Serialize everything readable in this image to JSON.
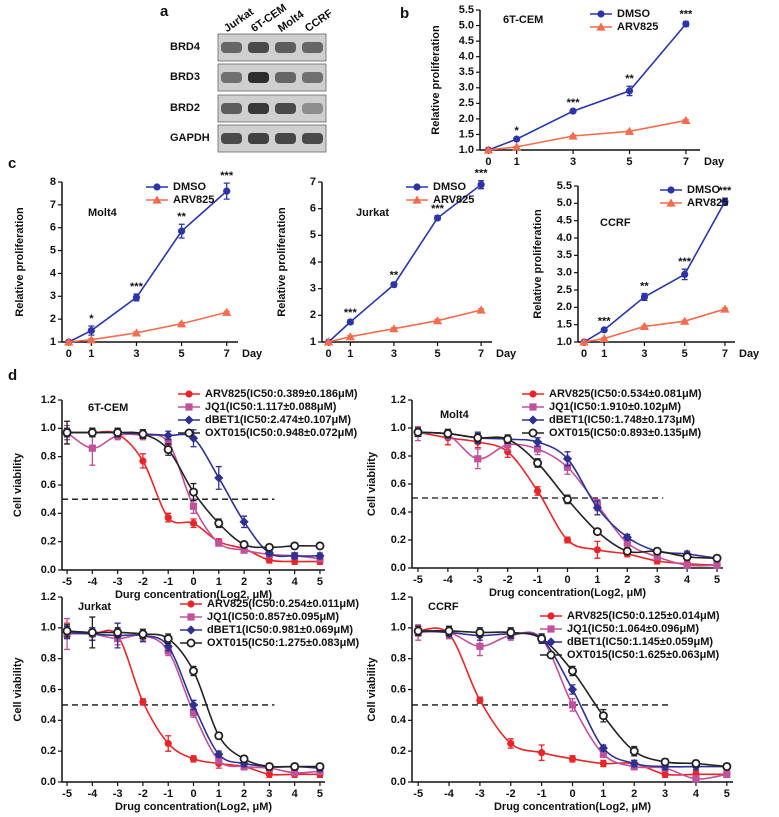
{
  "blot": {
    "panel": "a",
    "lanes": [
      "Jurkat",
      "6T-CEM",
      "Molt4",
      "CCRF"
    ],
    "rows": [
      "BRD4",
      "BRD3",
      "BRD2",
      "GAPDH"
    ]
  },
  "chart_data": [
    {
      "type": "line",
      "panel": "b",
      "title": "6T-CEM",
      "x_label": "Day",
      "y_label": "Relative proliferation",
      "x": [
        0,
        1,
        3,
        5,
        7
      ],
      "xlim": [
        -0.3,
        7.5
      ],
      "xticks": [
        0,
        1,
        3,
        5,
        7
      ],
      "ylim": [
        1,
        5.5
      ],
      "yticks": [
        {
          "value": 1,
          "label": "1.0"
        },
        1.5,
        {
          "value": 2,
          "label": "2.0"
        },
        2.5,
        {
          "value": 3,
          "label": "3.0"
        },
        3.5,
        {
          "value": 4,
          "label": "4.0"
        },
        4.5,
        {
          "value": 5,
          "label": "5.0"
        },
        5.5
      ],
      "legend": "upper right",
      "significance": [
        null,
        "*",
        "***",
        "**",
        "***"
      ],
      "series": [
        {
          "name": "DMSO",
          "color": "#2b35a8",
          "marker": "circle",
          "values": [
            1.0,
            1.35,
            2.25,
            2.9,
            5.05
          ],
          "errors": [
            0.02,
            0.04,
            0.04,
            0.15,
            0.08
          ]
        },
        {
          "name": "ARV825",
          "color": "#f26c4f",
          "marker": "triangle",
          "values": [
            1.0,
            1.1,
            1.45,
            1.6,
            1.95
          ],
          "errors": [
            0.02,
            0.02,
            0.03,
            0.03,
            0.03
          ]
        }
      ]
    },
    {
      "type": "line",
      "panel": "c",
      "title": "Molt4",
      "x_label": "Day",
      "y_label": "Relative proliferation",
      "x": [
        0,
        1,
        3,
        5,
        7
      ],
      "xlim": [
        -0.3,
        7.5
      ],
      "xticks": [
        0,
        1,
        3,
        5,
        7
      ],
      "ylim": [
        1,
        8
      ],
      "yticks": [
        1,
        2,
        3,
        4,
        5,
        6,
        7,
        8
      ],
      "legend": "upper right",
      "significance": [
        null,
        "*",
        "***",
        "**",
        "***"
      ],
      "series": [
        {
          "name": "DMSO",
          "color": "#2b35a8",
          "marker": "circle",
          "values": [
            1.0,
            1.5,
            2.95,
            5.85,
            7.6
          ],
          "errors": [
            0.05,
            0.2,
            0.15,
            0.3,
            0.35
          ]
        },
        {
          "name": "ARV825",
          "color": "#f26c4f",
          "marker": "triangle",
          "values": [
            1.0,
            1.1,
            1.4,
            1.8,
            2.3
          ],
          "errors": [
            0.03,
            0.04,
            0.05,
            0.05,
            0.05
          ]
        }
      ]
    },
    {
      "type": "line",
      "title": "Jurkat",
      "x_label": "Day",
      "y_label": "Relative proliferation",
      "x": [
        0,
        1,
        3,
        5,
        7
      ],
      "xlim": [
        -0.3,
        7.5
      ],
      "xticks": [
        0,
        1,
        3,
        5,
        7
      ],
      "ylim": [
        1,
        7
      ],
      "yticks": [
        1,
        2,
        3,
        4,
        5,
        6,
        7
      ],
      "legend": "upper right",
      "significance": [
        null,
        "***",
        "**",
        "***",
        "***"
      ],
      "series": [
        {
          "name": "DMSO",
          "color": "#2b35a8",
          "marker": "circle",
          "values": [
            1.0,
            1.75,
            3.15,
            5.65,
            6.9
          ],
          "errors": [
            0.03,
            0.08,
            0.08,
            0.08,
            0.15
          ]
        },
        {
          "name": "ARV825",
          "color": "#f26c4f",
          "marker": "triangle",
          "values": [
            1.0,
            1.2,
            1.5,
            1.8,
            2.2
          ],
          "errors": [
            0.03,
            0.04,
            0.04,
            0.05,
            0.05
          ]
        }
      ]
    },
    {
      "type": "line",
      "title": "CCRF",
      "x_label": "Day",
      "y_label": "Relative proliferation",
      "x": [
        0,
        1,
        3,
        5,
        7
      ],
      "xlim": [
        -0.3,
        7.5
      ],
      "xticks": [
        0,
        1,
        3,
        5,
        7
      ],
      "ylim": [
        1,
        5.5
      ],
      "yticks": [
        {
          "value": 1,
          "label": "1.0"
        },
        1.5,
        {
          "value": 2,
          "label": "2.0"
        },
        2.5,
        {
          "value": 3,
          "label": "3.0"
        },
        3.5,
        {
          "value": 4,
          "label": "4.0"
        },
        4.5,
        {
          "value": 5,
          "label": "5.0"
        },
        5.5
      ],
      "legend": "upper right",
      "significance": [
        null,
        "***",
        "**",
        "***",
        "***"
      ],
      "series": [
        {
          "name": "DMSO",
          "color": "#2b35a8",
          "marker": "circle",
          "values": [
            1.0,
            1.35,
            2.3,
            2.95,
            5.05
          ],
          "errors": [
            0.02,
            0.04,
            0.1,
            0.15,
            0.1
          ]
        },
        {
          "name": "ARV825",
          "color": "#f26c4f",
          "marker": "triangle",
          "values": [
            1.0,
            1.1,
            1.45,
            1.6,
            1.95
          ],
          "errors": [
            0.02,
            0.02,
            0.03,
            0.03,
            0.03
          ]
        }
      ]
    },
    {
      "type": "scatter",
      "panel": "d",
      "title": "6T-CEM",
      "x_label": "Durg concentration(Log2, μM)",
      "y_label": "Cell viability",
      "fit_line": true,
      "x": [
        -5,
        -4,
        -3,
        -2,
        -1,
        0,
        1,
        2,
        3,
        4,
        5
      ],
      "xlim": [
        -5.2,
        5.2
      ],
      "xticks": [
        -5,
        -4,
        -3,
        -2,
        -1,
        0,
        1,
        2,
        3,
        4,
        5
      ],
      "ylim": [
        0,
        1.2
      ],
      "yticks": [
        {
          "value": 0,
          "label": "0.0"
        },
        0.2,
        0.4,
        0.6,
        0.8,
        {
          "value": 1,
          "label": "1.0"
        },
        1.2
      ],
      "reference_line": 0.5,
      "legend": "upper right",
      "series": [
        {
          "name": "ARV825(IC50:0.389±0.186μM)",
          "color": "#e8262a",
          "marker": "circle",
          "values": [
            0.97,
            0.97,
            0.96,
            0.77,
            0.37,
            0.33,
            0.2,
            0.15,
            0.07,
            0.06,
            0.06
          ],
          "errors": [
            0.03,
            0.03,
            0.03,
            0.05,
            0.03,
            0.03,
            0.02,
            0.02,
            0.02,
            0.02,
            0.02
          ]
        },
        {
          "name": "JQ1(IC50:1.117±0.088μM)",
          "color": "#c0529b",
          "marker": "square",
          "values": [
            0.97,
            0.86,
            0.95,
            0.95,
            0.9,
            0.45,
            0.19,
            0.14,
            0.11,
            0.1,
            0.08
          ],
          "errors": [
            0.05,
            0.12,
            0.03,
            0.03,
            0.03,
            0.05,
            0.02,
            0.02,
            0.02,
            0.02,
            0.02
          ]
        },
        {
          "name": "dBET1(IC50:2.474±0.107μM)",
          "color": "#2e3192",
          "marker": "diamond",
          "values": [
            0.97,
            0.97,
            0.97,
            0.96,
            0.95,
            0.93,
            0.65,
            0.34,
            0.12,
            0.1,
            0.1
          ],
          "errors": [
            0.03,
            0.03,
            0.03,
            0.03,
            0.03,
            0.06,
            0.08,
            0.04,
            0.02,
            0.02,
            0.02
          ]
        },
        {
          "name": "OXT015(IC50:0.948±0.072μM)",
          "color": "#222222",
          "marker": "open-circle",
          "values": [
            0.97,
            0.97,
            0.97,
            0.96,
            0.85,
            0.55,
            0.33,
            0.18,
            0.16,
            0.17,
            0.17
          ],
          "errors": [
            0.08,
            0.03,
            0.03,
            0.03,
            0.04,
            0.06,
            0.03,
            0.02,
            0.02,
            0.02,
            0.02
          ]
        }
      ]
    },
    {
      "type": "scatter",
      "title": "Molt4",
      "x_label": "Drug concentration(Log2, μM)",
      "y_label": "Cell viability",
      "fit_line": true,
      "x": [
        -5,
        -4,
        -3,
        -2,
        -1,
        0,
        1,
        2,
        3,
        4,
        5
      ],
      "xlim": [
        -5.2,
        5.2
      ],
      "xticks": [
        -5,
        -4,
        -3,
        -2,
        -1,
        0,
        1,
        2,
        3,
        4,
        5
      ],
      "ylim": [
        0,
        1.2
      ],
      "yticks": [
        {
          "value": 0,
          "label": "0.0"
        },
        0.2,
        0.4,
        0.6,
        0.8,
        {
          "value": 1,
          "label": "1.0"
        },
        1.2
      ],
      "reference_line": 0.5,
      "legend": "upper right",
      "series": [
        {
          "name": "ARV825(IC50:0.534±0.081μM)",
          "color": "#e8262a",
          "marker": "circle",
          "values": [
            0.97,
            0.93,
            0.9,
            0.83,
            0.55,
            0.2,
            0.13,
            0.1,
            0.05,
            0.03,
            0.02
          ],
          "errors": [
            0.03,
            0.05,
            0.04,
            0.04,
            0.03,
            0.02,
            0.06,
            0.02,
            0.02,
            0.02,
            0.02
          ]
        },
        {
          "name": "JQ1(IC50:1.910±0.102μM)",
          "color": "#c0529b",
          "marker": "square",
          "values": [
            0.96,
            0.95,
            0.78,
            0.88,
            0.85,
            0.72,
            0.45,
            0.18,
            0.08,
            0.02,
            0.02
          ],
          "errors": [
            0.05,
            0.03,
            0.07,
            0.04,
            0.04,
            0.05,
            0.04,
            0.03,
            0.02,
            0.02,
            0.02
          ]
        },
        {
          "name": "dBET1(IC50:1.748±0.173μM)",
          "color": "#2e3192",
          "marker": "diamond",
          "values": [
            0.97,
            0.96,
            0.93,
            0.92,
            0.9,
            0.78,
            0.43,
            0.22,
            0.12,
            0.1,
            0.07
          ],
          "errors": [
            0.03,
            0.03,
            0.04,
            0.03,
            0.03,
            0.05,
            0.05,
            0.02,
            0.02,
            0.02,
            0.02
          ]
        },
        {
          "name": "OXT015(IC50:0.893±0.135μM)",
          "color": "#222222",
          "marker": "open-circle",
          "values": [
            0.97,
            0.96,
            0.93,
            0.92,
            0.75,
            0.49,
            0.26,
            0.12,
            0.12,
            0.08,
            0.07
          ],
          "errors": [
            0.03,
            0.03,
            0.03,
            0.03,
            0.03,
            0.03,
            0.02,
            0.02,
            0.02,
            0.02,
            0.02
          ]
        }
      ]
    },
    {
      "type": "scatter",
      "title": "Jurkat",
      "x_label": "Drug concentration(Log2, μM)",
      "y_label": "Cell viability",
      "fit_line": true,
      "x": [
        -5,
        -4,
        -3,
        -2,
        -1,
        0,
        1,
        2,
        3,
        4,
        5
      ],
      "xlim": [
        -5.2,
        5.2
      ],
      "xticks": [
        -5,
        -4,
        -3,
        -2,
        -1,
        0,
        1,
        2,
        3,
        4,
        5
      ],
      "ylim": [
        0,
        1.2
      ],
      "yticks": [
        {
          "value": 0,
          "label": "0.0"
        },
        0.2,
        0.4,
        0.6,
        0.8,
        {
          "value": 1,
          "label": "1.0"
        },
        1.2
      ],
      "reference_line": 0.5,
      "legend": "upper right",
      "series": [
        {
          "name": "ARV825(IC50:0.254±0.011μM)",
          "color": "#e8262a",
          "marker": "circle",
          "values": [
            0.98,
            0.96,
            0.95,
            0.52,
            0.25,
            0.15,
            0.12,
            0.1,
            0.05,
            0.05,
            0.05
          ],
          "errors": [
            0.05,
            0.04,
            0.03,
            0.02,
            0.05,
            0.02,
            0.03,
            0.02,
            0.02,
            0.02,
            0.02
          ]
        },
        {
          "name": "JQ1(IC50:0.857±0.095μM)",
          "color": "#c0529b",
          "marker": "square",
          "values": [
            0.96,
            0.96,
            0.93,
            0.95,
            0.85,
            0.45,
            0.14,
            0.1,
            0.09,
            0.06,
            0.07
          ],
          "errors": [
            0.1,
            0.04,
            0.04,
            0.03,
            0.03,
            0.03,
            0.02,
            0.02,
            0.02,
            0.02,
            0.02
          ]
        },
        {
          "name": "dBET1(IC50:0.981±0.069μM)",
          "color": "#2e3192",
          "marker": "diamond",
          "values": [
            0.97,
            0.96,
            0.95,
            0.95,
            0.88,
            0.5,
            0.18,
            0.12,
            0.1,
            0.1,
            0.09
          ],
          "errors": [
            0.04,
            0.04,
            0.08,
            0.04,
            0.03,
            0.03,
            0.02,
            0.02,
            0.02,
            0.02,
            0.02
          ]
        },
        {
          "name": "OXT015(IC50:1.275±0.083μM)",
          "color": "#222222",
          "marker": "open-circle",
          "values": [
            0.98,
            0.97,
            0.97,
            0.96,
            0.93,
            0.72,
            0.3,
            0.15,
            0.1,
            0.1,
            0.1
          ],
          "errors": [
            0.04,
            0.1,
            0.03,
            0.03,
            0.03,
            0.03,
            0.02,
            0.02,
            0.02,
            0.02,
            0.02
          ]
        }
      ]
    },
    {
      "type": "scatter",
      "title": "CCRF",
      "x_label": "Drug concentration(Log2, μM)",
      "y_label": "Cell viability",
      "fit_line": true,
      "x": [
        -5,
        -4,
        -3,
        -2,
        -1,
        0,
        1,
        2,
        3,
        4,
        5
      ],
      "xlim": [
        -5.2,
        5.2
      ],
      "xticks": [
        -5,
        -4,
        -3,
        -2,
        -1,
        0,
        1,
        2,
        3,
        4,
        5
      ],
      "ylim": [
        0,
        1.2
      ],
      "yticks": [
        {
          "value": 0,
          "label": "0.0"
        },
        0.2,
        0.4,
        0.6,
        0.8,
        {
          "value": 1,
          "label": "1.0"
        },
        1.2
      ],
      "reference_line": 0.5,
      "legend": "upper right",
      "series": [
        {
          "name": "ARV825(IC50:0.125±0.014μM)",
          "color": "#e8262a",
          "marker": "circle",
          "values": [
            0.98,
            0.96,
            0.53,
            0.25,
            0.19,
            0.15,
            0.12,
            0.12,
            0.05,
            0.05,
            0.05
          ],
          "errors": [
            0.03,
            0.03,
            0.02,
            0.03,
            0.05,
            0.02,
            0.02,
            0.02,
            0.02,
            0.02,
            0.02
          ]
        },
        {
          "name": "JQ1(IC50:1.064±0.096μM)",
          "color": "#c0529b",
          "marker": "square",
          "values": [
            0.97,
            0.97,
            0.88,
            0.95,
            0.93,
            0.5,
            0.18,
            0.1,
            0.09,
            0.02,
            0.05
          ],
          "errors": [
            0.05,
            0.04,
            0.06,
            0.03,
            0.03,
            0.04,
            0.02,
            0.02,
            0.02,
            0.02,
            0.02
          ]
        },
        {
          "name": "dBET1(IC50:1.145±0.059μM)",
          "color": "#2e3192",
          "marker": "diamond",
          "values": [
            0.98,
            0.97,
            0.95,
            0.96,
            0.93,
            0.6,
            0.22,
            0.12,
            0.1,
            0.1,
            0.1
          ],
          "errors": [
            0.03,
            0.03,
            0.03,
            0.03,
            0.03,
            0.03,
            0.02,
            0.02,
            0.02,
            0.02,
            0.02
          ]
        },
        {
          "name": "OXT015(IC50:1.625±0.063μM)",
          "color": "#222222",
          "marker": "open-circle",
          "values": [
            0.98,
            0.98,
            0.97,
            0.97,
            0.93,
            0.72,
            0.43,
            0.2,
            0.13,
            0.12,
            0.1
          ],
          "errors": [
            0.03,
            0.03,
            0.03,
            0.03,
            0.03,
            0.03,
            0.04,
            0.03,
            0.02,
            0.02,
            0.02
          ]
        }
      ]
    }
  ]
}
